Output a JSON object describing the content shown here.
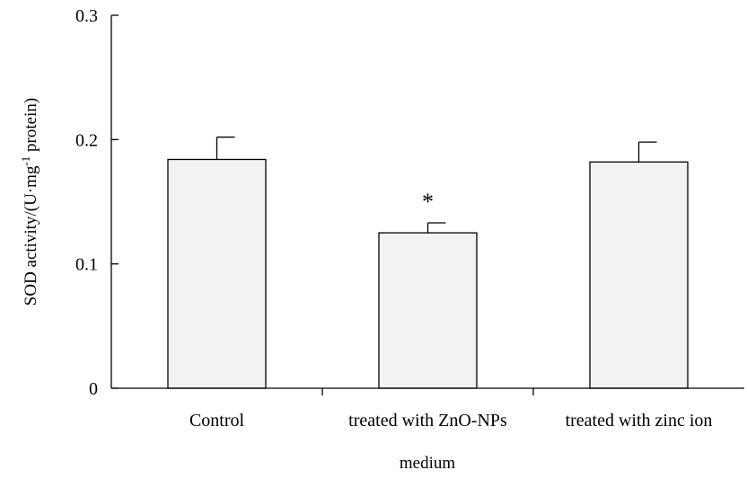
{
  "chart_data": {
    "type": "bar",
    "categories": [
      "Control",
      "treated with ZnO-NPs",
      "treated with zinc ion"
    ],
    "values": [
      0.184,
      0.125,
      0.182
    ],
    "errors": [
      0.018,
      0.008,
      0.016
    ],
    "xlabel": "medium",
    "ylabel": {
      "prefix": "SOD activity/(U·mg",
      "superscript": "-1",
      "suffix": " protein)"
    },
    "ylim": [
      0,
      0.3
    ],
    "yticks": [
      0,
      0.1,
      0.2,
      0.3
    ],
    "ytick_labels": [
      "0",
      "0.1",
      "0.2",
      "0.3"
    ],
    "annotations": [
      {
        "category_index": 1,
        "text": "*"
      }
    ],
    "bar_color": "#f2f2f2",
    "grid": false,
    "legend": false
  }
}
